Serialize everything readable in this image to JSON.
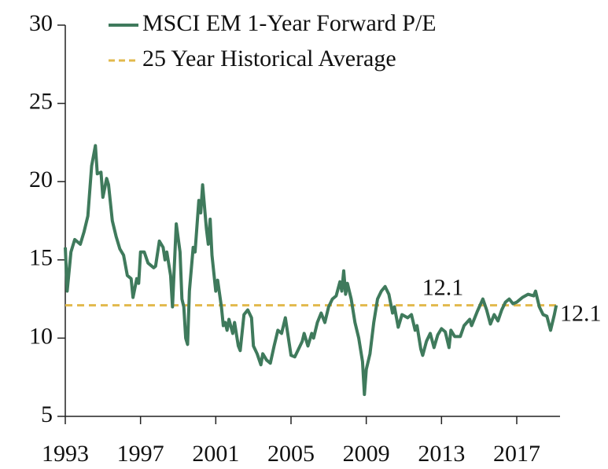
{
  "chart_data": {
    "type": "line",
    "x": [
      1993.0,
      1993.1,
      1993.3,
      1993.5,
      1993.8,
      1994.0,
      1994.2,
      1994.4,
      1994.6,
      1994.7,
      1994.9,
      1995.0,
      1995.2,
      1995.3,
      1995.5,
      1995.7,
      1995.9,
      1996.1,
      1996.3,
      1996.5,
      1996.6,
      1996.8,
      1996.9,
      1997.0,
      1997.2,
      1997.4,
      1997.7,
      1997.8,
      1998.0,
      1998.2,
      1998.3,
      1998.4,
      1998.6,
      1998.7,
      1998.9,
      1999.1,
      1999.2,
      1999.3,
      1999.4,
      1999.5,
      1999.6,
      1999.8,
      1999.9,
      2000.1,
      2000.2,
      2000.3,
      2000.5,
      2000.6,
      2000.7,
      2000.8,
      2001.0,
      2001.1,
      2001.3,
      2001.4,
      2001.5,
      2001.6,
      2001.7,
      2001.9,
      2002.0,
      2002.2,
      2002.3,
      2002.5,
      2002.7,
      2002.9,
      2003.0,
      2003.2,
      2003.4,
      2003.5,
      2003.7,
      2003.9,
      2004.1,
      2004.3,
      2004.5,
      2004.7,
      2004.8,
      2005.0,
      2005.2,
      2005.4,
      2005.6,
      2005.7,
      2005.9,
      2006.1,
      2006.2,
      2006.4,
      2006.6,
      2006.8,
      2007.0,
      2007.2,
      2007.4,
      2007.6,
      2007.7,
      2007.8,
      2007.9,
      2008.0,
      2008.2,
      2008.4,
      2008.6,
      2008.8,
      2008.9,
      2009.0,
      2009.2,
      2009.4,
      2009.6,
      2009.8,
      2010.0,
      2010.2,
      2010.4,
      2010.5,
      2010.7,
      2010.9,
      2011.2,
      2011.4,
      2011.6,
      2011.7,
      2011.9,
      2012.0,
      2012.2,
      2012.4,
      2012.6,
      2012.8,
      2013.0,
      2013.2,
      2013.4,
      2013.5,
      2013.7,
      2014.0,
      2014.2,
      2014.5,
      2014.6,
      2014.9,
      2015.2,
      2015.4,
      2015.6,
      2015.8,
      2016.0,
      2016.2,
      2016.4,
      2016.6,
      2016.8,
      2017.0,
      2017.3,
      2017.6,
      2017.9,
      2018.0,
      2018.2,
      2018.4,
      2018.6,
      2018.8,
      2019.0,
      2019.1
    ],
    "series": [
      {
        "name": "MSCI EM 1-Year Forward P/E",
        "color": "#3f7a5c",
        "values": [
          15.8,
          13.0,
          15.5,
          16.3,
          16.0,
          16.8,
          17.8,
          21.0,
          22.3,
          20.5,
          20.6,
          19.0,
          20.2,
          19.8,
          17.5,
          16.5,
          15.7,
          15.3,
          14.0,
          13.8,
          12.6,
          13.8,
          13.5,
          15.5,
          15.5,
          14.8,
          14.5,
          14.6,
          16.2,
          15.8,
          15.0,
          15.5,
          14.0,
          12.0,
          17.3,
          15.5,
          12.5,
          12.0,
          10.0,
          9.6,
          13.0,
          15.8,
          15.5,
          18.8,
          18.0,
          19.8,
          17.0,
          16.0,
          17.6,
          15.3,
          13.0,
          13.7,
          12.0,
          10.8,
          11.0,
          10.5,
          11.2,
          10.3,
          11.0,
          9.5,
          9.2,
          11.5,
          11.8,
          11.3,
          9.5,
          9.0,
          8.3,
          9.0,
          8.6,
          8.4,
          9.5,
          10.5,
          10.3,
          11.3,
          10.5,
          8.9,
          8.8,
          9.3,
          9.8,
          10.3,
          9.5,
          10.3,
          10.0,
          11.0,
          11.6,
          11.0,
          12.0,
          12.5,
          12.7,
          13.6,
          13.0,
          14.3,
          12.8,
          13.5,
          12.5,
          11.0,
          10.0,
          8.5,
          6.4,
          8.0,
          9.0,
          11.0,
          12.5,
          13.0,
          13.3,
          12.8,
          11.6,
          12.0,
          10.7,
          11.5,
          11.3,
          11.5,
          10.5,
          10.8,
          9.3,
          8.9,
          9.8,
          10.3,
          9.4,
          10.2,
          10.6,
          10.4,
          9.4,
          10.5,
          10.1,
          10.1,
          10.8,
          11.2,
          10.8,
          11.7,
          12.5,
          11.8,
          10.9,
          11.5,
          11.1,
          11.8,
          12.3,
          12.5,
          12.2,
          12.3,
          12.6,
          12.8,
          12.7,
          13.0,
          12.0,
          11.5,
          11.4,
          10.5,
          11.5,
          12.1
        ]
      }
    ],
    "reference_line": {
      "name": "25 Year Historical Average",
      "color": "#e2b94c",
      "value": 12.1,
      "value_labels": [
        "12.1",
        "12.1"
      ]
    },
    "xlim": [
      1993,
      2019.3
    ],
    "xticks": [
      1993,
      1997,
      2001,
      2005,
      2009,
      2013,
      2017
    ],
    "ylim": [
      5,
      30
    ],
    "yticks": [
      5,
      10,
      15,
      20,
      25,
      30
    ]
  }
}
